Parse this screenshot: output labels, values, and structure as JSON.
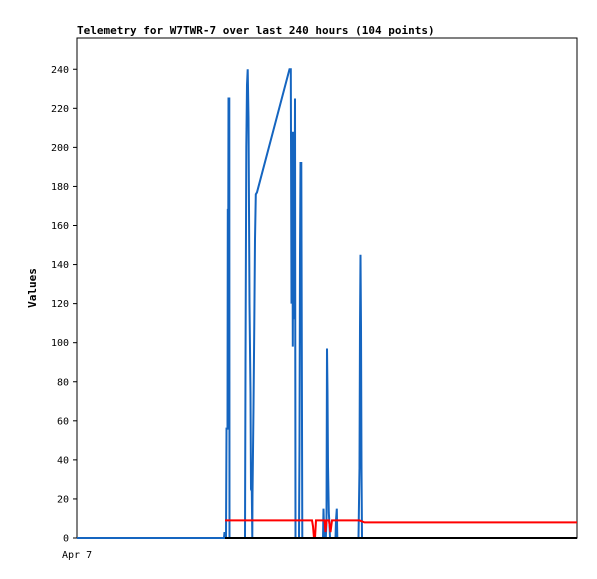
{
  "chart_data": {
    "type": "line",
    "title": "Telemetry for W7TWR-7 over last 240 hours (104 points)",
    "xlabel": "",
    "ylabel": "Values",
    "x_tick_labels": [
      "Apr 7"
    ],
    "y_ticks": [
      0,
      20,
      40,
      60,
      80,
      100,
      120,
      140,
      160,
      180,
      200,
      220,
      240
    ],
    "xlim": [
      0,
      100
    ],
    "ylim": [
      0,
      256
    ],
    "grid": false,
    "legend": "none",
    "series": [
      {
        "color": "#1565c0",
        "points": [
          [
            0,
            0
          ],
          [
            29.4,
            0
          ],
          [
            29.5,
            3
          ],
          [
            29.6,
            0
          ],
          [
            29.8,
            0
          ],
          [
            29.9,
            56
          ],
          [
            30.1,
            56
          ],
          [
            30.15,
            168
          ],
          [
            30.25,
            168
          ],
          [
            30.3,
            225
          ],
          [
            30.45,
            225
          ],
          [
            30.5,
            0
          ],
          [
            33.6,
            0
          ],
          [
            33.7,
            88
          ],
          [
            33.85,
            200
          ],
          [
            34.0,
            232
          ],
          [
            34.15,
            240
          ],
          [
            34.3,
            215
          ],
          [
            34.4,
            169
          ],
          [
            34.5,
            120
          ],
          [
            34.7,
            74
          ],
          [
            34.8,
            25
          ],
          [
            34.95,
            24
          ],
          [
            35.05,
            0
          ],
          [
            35.1,
            22
          ],
          [
            35.3,
            67
          ],
          [
            35.45,
            110
          ],
          [
            35.6,
            153
          ],
          [
            35.75,
            176
          ],
          [
            36.0,
            177
          ],
          [
            42.5,
            240
          ],
          [
            42.75,
            240
          ],
          [
            42.9,
            120
          ],
          [
            43.05,
            208
          ],
          [
            43.15,
            98
          ],
          [
            43.25,
            200
          ],
          [
            43.35,
            208
          ],
          [
            43.45,
            112
          ],
          [
            43.6,
            225
          ],
          [
            43.7,
            0
          ],
          [
            44.4,
            0
          ],
          [
            44.5,
            48
          ],
          [
            44.6,
            145
          ],
          [
            44.7,
            192
          ],
          [
            44.85,
            192
          ],
          [
            44.95,
            97
          ],
          [
            45.05,
            0
          ],
          [
            49.2,
            0
          ],
          [
            49.3,
            15
          ],
          [
            49.45,
            0
          ],
          [
            49.75,
            0
          ],
          [
            49.9,
            8
          ],
          [
            50.0,
            97
          ],
          [
            50.1,
            75
          ],
          [
            50.2,
            37
          ],
          [
            50.35,
            13
          ],
          [
            50.5,
            7
          ],
          [
            50.6,
            0
          ],
          [
            51.7,
            0
          ],
          [
            51.8,
            9
          ],
          [
            51.95,
            15
          ],
          [
            52.05,
            0
          ],
          [
            56.3,
            0
          ],
          [
            56.5,
            36
          ],
          [
            56.6,
            108
          ],
          [
            56.7,
            145
          ],
          [
            56.8,
            108
          ],
          [
            56.9,
            36
          ],
          [
            57.0,
            0
          ],
          [
            100,
            0
          ]
        ]
      },
      {
        "color": "#ff0000",
        "points": [
          [
            29.6,
            9
          ],
          [
            47.0,
            9
          ],
          [
            47.2,
            6
          ],
          [
            47.4,
            0
          ],
          [
            47.6,
            0
          ],
          [
            47.8,
            9
          ],
          [
            49.5,
            9
          ],
          [
            49.7,
            3
          ],
          [
            49.9,
            9
          ],
          [
            50.4,
            9
          ],
          [
            50.7,
            3
          ],
          [
            51.0,
            9
          ],
          [
            52.1,
            9
          ],
          [
            56.5,
            9
          ],
          [
            57.5,
            8
          ],
          [
            100,
            8
          ]
        ]
      },
      {
        "color": "#000000",
        "points": [
          [
            29.6,
            0
          ],
          [
            100,
            0
          ]
        ]
      }
    ]
  }
}
